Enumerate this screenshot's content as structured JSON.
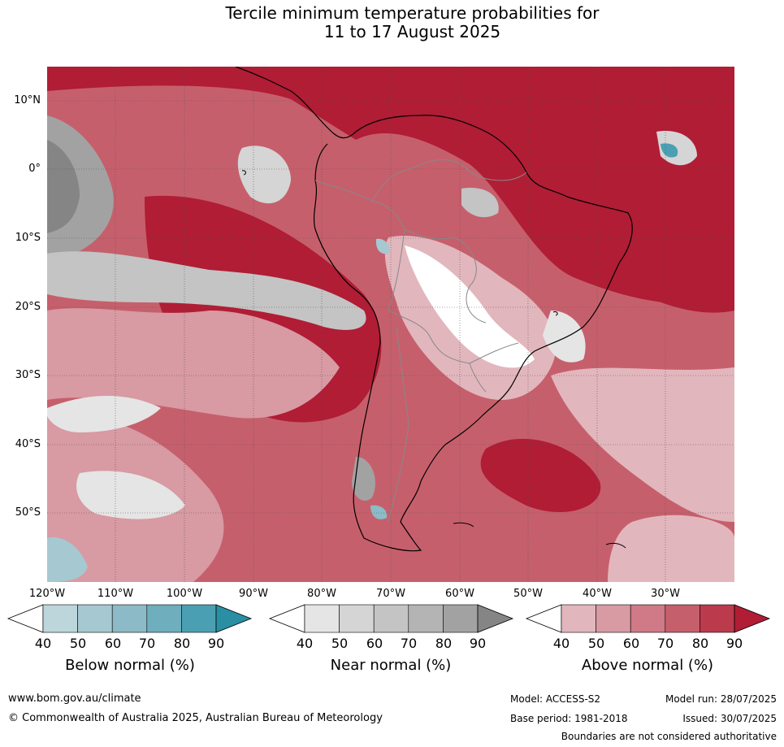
{
  "title_line1": "Tercile minimum temperature probabilities for",
  "title_line2": "11 to 17 August 2025",
  "map": {
    "lat_labels": [
      "10°N",
      "0°",
      "10°S",
      "20°S",
      "30°S",
      "40°S",
      "50°S"
    ],
    "lon_labels": [
      "120°W",
      "110°W",
      "100°W",
      "90°W",
      "80°W",
      "70°W",
      "60°W",
      "50°W",
      "40°W",
      "30°W"
    ]
  },
  "legend": {
    "ticks": [
      "40",
      "50",
      "60",
      "70",
      "80",
      "90"
    ],
    "below": {
      "title": "Below normal (%)",
      "colors": [
        "#bdd6dc",
        "#a6c8d1",
        "#8cbbc7",
        "#6eaebd",
        "#4aa0b2",
        "#2a8fa2"
      ]
    },
    "near": {
      "title": "Near normal (%)",
      "colors": [
        "#e5e5e5",
        "#d5d5d5",
        "#c4c4c4",
        "#b4b4b4",
        "#a2a2a2",
        "#858585"
      ]
    },
    "above": {
      "title": "Above normal (%)",
      "colors": [
        "#e2b6bd",
        "#d89aa3",
        "#cf7a86",
        "#c65f6c",
        "#bb3a4c",
        "#b01d35"
      ]
    }
  },
  "footer": {
    "website": "www.bom.gov.au/climate",
    "copyright": "© Commonwealth of Australia 2025, Australian Bureau of Meteorology",
    "model": "Model: ACCESS-S2",
    "model_run": "Model run: 28/07/2025",
    "base_period": "Base period: 1981-2018",
    "issued": "Issued: 30/07/2025",
    "disclaimer": "Boundaries are not considered authoritative"
  }
}
